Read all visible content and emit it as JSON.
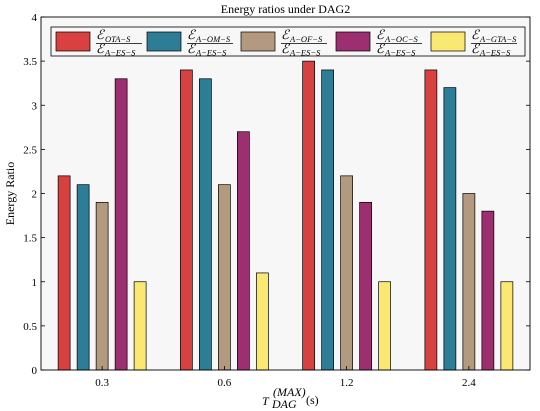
{
  "chart_data": {
    "type": "bar",
    "title": "Energy ratios under DAG2",
    "ylabel": "Energy Ratio",
    "xlabel": {
      "main": "T",
      "superscript": "(MAX)",
      "subscript": "DAG",
      "unit": "(s)"
    },
    "categories": [
      "0.3",
      "0.6",
      "1.2",
      "2.4"
    ],
    "ylim": [
      0,
      4
    ],
    "yticks": [
      "0",
      "0.5",
      "1",
      "1.5",
      "2",
      "2.5",
      "3",
      "3.5",
      "4"
    ],
    "grid": false,
    "legend_position": "top",
    "series": [
      {
        "name": {
          "num": "OTA−S",
          "den": "A−ES−S"
        },
        "color": "#d94040",
        "values": [
          2.2,
          3.4,
          3.5,
          3.4
        ]
      },
      {
        "name": {
          "num": "A−OM−S",
          "den": "A−ES−S"
        },
        "color": "#2e7d96",
        "values": [
          2.1,
          3.3,
          3.4,
          3.2
        ]
      },
      {
        "name": {
          "num": "A−OF−S",
          "den": "A−ES−S"
        },
        "color": "#b39a7e",
        "values": [
          1.9,
          2.1,
          2.2,
          2.0
        ]
      },
      {
        "name": {
          "num": "A−OC−S",
          "den": "A−ES−S"
        },
        "color": "#9c2f70",
        "values": [
          3.3,
          2.7,
          1.9,
          1.8
        ]
      },
      {
        "name": {
          "num": "A−GTA−S",
          "den": "A−ES−S"
        },
        "color": "#fbe873",
        "values": [
          1.0,
          1.1,
          1.0,
          1.0
        ]
      }
    ]
  }
}
